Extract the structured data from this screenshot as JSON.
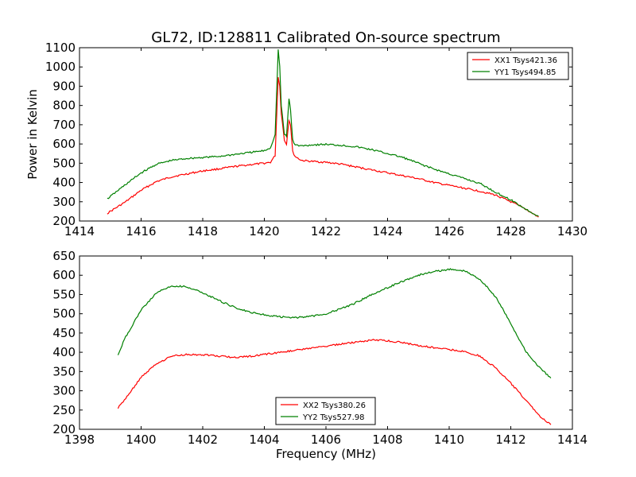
{
  "chart_data": [
    {
      "type": "line",
      "title": "GL72, ID:128811 Calibrated On-source spectrum",
      "xlabel": "",
      "ylabel": "Power in Kelvin",
      "xlim": [
        1414,
        1430
      ],
      "ylim": [
        200,
        1100
      ],
      "xticks": [
        "1414",
        "1416",
        "1418",
        "1420",
        "1422",
        "1424",
        "1426",
        "1428",
        "1430"
      ],
      "yticks": [
        "200",
        "300",
        "400",
        "500",
        "600",
        "700",
        "800",
        "900",
        "1000",
        "1100"
      ],
      "legend_position": "top-right",
      "series": [
        {
          "name": "XX1 Tsys421.36",
          "color": "#ff0000",
          "x": [
            1414.9,
            1415.5,
            1416,
            1416.5,
            1417,
            1417.5,
            1418,
            1418.5,
            1419,
            1419.5,
            1420,
            1420.2,
            1420.35,
            1420.45,
            1420.5,
            1420.55,
            1420.65,
            1420.72,
            1420.8,
            1420.85,
            1420.92,
            1421.0,
            1421.2,
            1421.5,
            1422,
            1422.5,
            1423,
            1423.5,
            1424,
            1424.5,
            1425,
            1425.5,
            1426,
            1426.5,
            1427,
            1427.5,
            1428,
            1428.5,
            1428.9
          ],
          "y": [
            240,
            300,
            360,
            405,
            430,
            445,
            460,
            470,
            482,
            492,
            500,
            505,
            540,
            950,
            900,
            760,
            620,
            600,
            725,
            700,
            560,
            535,
            515,
            510,
            505,
            495,
            480,
            465,
            450,
            435,
            420,
            400,
            385,
            370,
            355,
            335,
            300,
            260,
            220
          ]
        },
        {
          "name": "YY1 Tsys494.85",
          "color": "#008000",
          "x": [
            1414.9,
            1415.5,
            1416,
            1416.5,
            1417,
            1417.5,
            1418,
            1418.5,
            1419,
            1419.5,
            1420,
            1420.2,
            1420.35,
            1420.45,
            1420.5,
            1420.55,
            1420.65,
            1420.72,
            1420.8,
            1420.85,
            1420.92,
            1421.0,
            1421.2,
            1421.5,
            1422,
            1422.5,
            1423,
            1423.5,
            1424,
            1424.5,
            1425,
            1425.5,
            1426,
            1426.5,
            1427,
            1427.5,
            1428,
            1428.5,
            1428.9
          ],
          "y": [
            315,
            390,
            450,
            495,
            515,
            525,
            530,
            535,
            545,
            555,
            565,
            580,
            650,
            1090,
            1000,
            800,
            650,
            640,
            835,
            780,
            620,
            595,
            590,
            595,
            598,
            593,
            585,
            570,
            550,
            530,
            500,
            470,
            445,
            420,
            395,
            350,
            310,
            260,
            225
          ]
        }
      ]
    },
    {
      "type": "line",
      "title": "",
      "xlabel": "Frequency (MHz)",
      "ylabel": "",
      "xlim": [
        1398,
        1414
      ],
      "ylim": [
        200,
        650
      ],
      "xticks": [
        "1398",
        "1400",
        "1402",
        "1404",
        "1406",
        "1408",
        "1410",
        "1412",
        "1414"
      ],
      "yticks": [
        "200",
        "250",
        "300",
        "350",
        "400",
        "450",
        "500",
        "550",
        "600",
        "650"
      ],
      "legend_position": "bottom-center",
      "series": [
        {
          "name": "XX2 Tsys380.26",
          "color": "#ff0000",
          "x": [
            1399.25,
            1399.5,
            1400,
            1400.5,
            1401,
            1401.5,
            1402,
            1402.5,
            1403,
            1403.5,
            1404,
            1404.5,
            1405,
            1405.5,
            1406,
            1406.5,
            1407,
            1407.5,
            1408,
            1408.5,
            1409,
            1409.5,
            1410,
            1410.5,
            1411,
            1411.5,
            1412,
            1412.5,
            1413,
            1413.3
          ],
          "y": [
            255,
            280,
            335,
            370,
            390,
            394,
            394,
            390,
            387,
            389,
            394,
            400,
            405,
            410,
            415,
            422,
            427,
            432,
            430,
            425,
            418,
            412,
            407,
            402,
            390,
            360,
            320,
            275,
            230,
            212
          ]
        },
        {
          "name": "YY2 Tsys527.98",
          "color": "#008000",
          "x": [
            1399.25,
            1399.5,
            1400,
            1400.5,
            1401,
            1401.5,
            1402,
            1402.5,
            1403,
            1403.5,
            1404,
            1404.5,
            1405,
            1405.5,
            1406,
            1406.5,
            1407,
            1407.5,
            1408,
            1408.5,
            1409,
            1409.5,
            1410,
            1410.5,
            1411,
            1411.5,
            1412,
            1412.5,
            1413,
            1413.3
          ],
          "y": [
            395,
            440,
            510,
            555,
            572,
            570,
            555,
            535,
            518,
            505,
            497,
            492,
            490,
            493,
            500,
            513,
            530,
            550,
            568,
            585,
            600,
            610,
            615,
            612,
            590,
            545,
            475,
            400,
            355,
            333
          ]
        }
      ]
    }
  ]
}
